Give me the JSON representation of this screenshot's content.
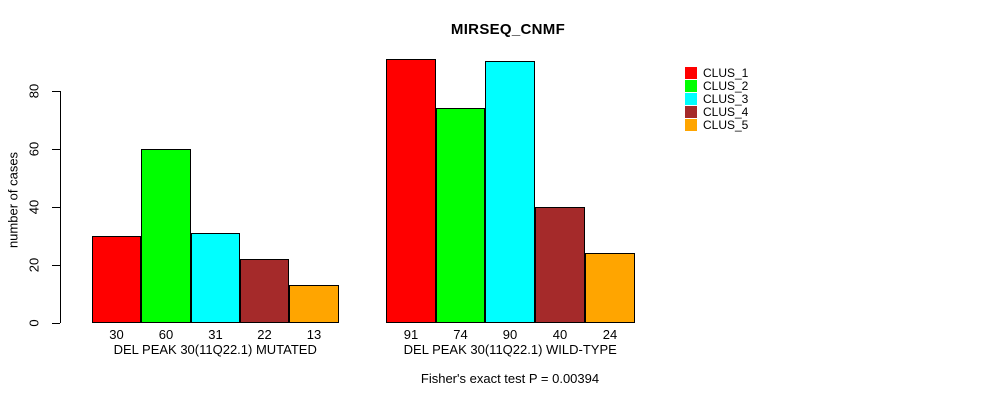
{
  "title": "MIRSEQ_CNMF",
  "chart_data": {
    "type": "bar",
    "title": "MIRSEQ_CNMF",
    "ylabel": "number of cases",
    "xlabel": "",
    "yticks": [
      0,
      20,
      40,
      60,
      80
    ],
    "ylim": [
      0,
      95
    ],
    "grid": false,
    "legend_position": "right",
    "bar_value_labels_shown": true,
    "series_names": [
      "CLUS_1",
      "CLUS_2",
      "CLUS_3",
      "CLUS_4",
      "CLUS_5"
    ],
    "groups": [
      {
        "label": "DEL PEAK 30(11Q22.1) MUTATED",
        "values": [
          30,
          60,
          31,
          22,
          13
        ]
      },
      {
        "label": "DEL PEAK 30(11Q22.1) WILD-TYPE",
        "values": [
          91,
          74,
          90,
          40,
          24
        ]
      }
    ],
    "footnote": "Fisher's exact test P = 0.00394"
  },
  "legend": {
    "entries": [
      {
        "label": "CLUS_1",
        "color": "#FF0000"
      },
      {
        "label": "CLUS_2",
        "color": "#00FF00"
      },
      {
        "label": "CLUS_3",
        "color": "#00FFFF"
      },
      {
        "label": "CLUS_4",
        "color": "#A52A2A"
      },
      {
        "label": "CLUS_5",
        "color": "#FFA500"
      }
    ]
  },
  "colors": {
    "background": "#FFFFFF",
    "axis": "#000000",
    "text": "#000000"
  }
}
